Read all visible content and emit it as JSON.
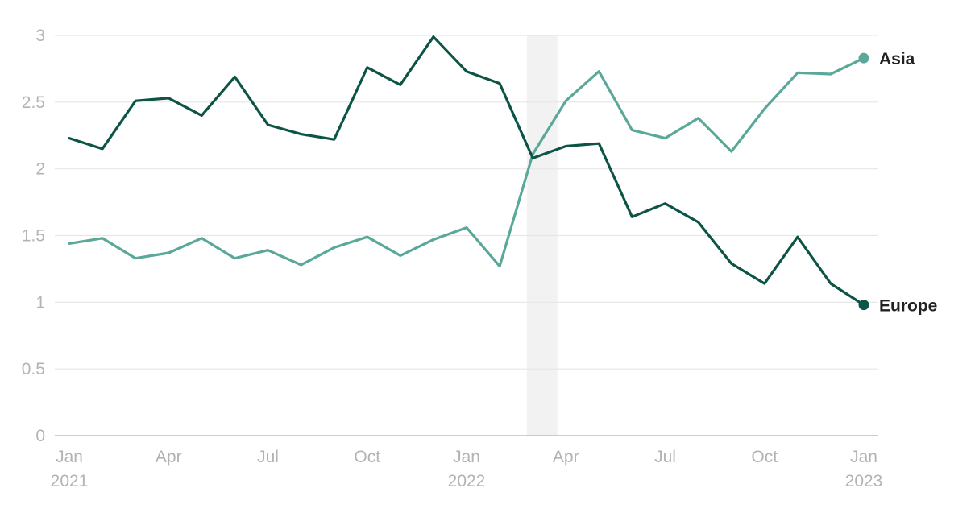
{
  "chart_data": {
    "type": "line",
    "title": "",
    "xlabel": "",
    "ylabel": "",
    "ylim": [
      0,
      3
    ],
    "y_ticks": [
      "0",
      "0.5",
      "1",
      "1.5",
      "2",
      "2.5",
      "3"
    ],
    "x_tick_labels": [
      {
        "month": 0,
        "line1": "Jan",
        "line2": "2021"
      },
      {
        "month": 3,
        "line1": "Apr",
        "line2": ""
      },
      {
        "month": 6,
        "line1": "Jul",
        "line2": ""
      },
      {
        "month": 9,
        "line1": "Oct",
        "line2": ""
      },
      {
        "month": 12,
        "line1": "Jan",
        "line2": "2022"
      },
      {
        "month": 15,
        "line1": "Apr",
        "line2": ""
      },
      {
        "month": 18,
        "line1": "Jul",
        "line2": ""
      },
      {
        "month": 21,
        "line1": "Oct",
        "line2": ""
      },
      {
        "month": 24,
        "line1": "Jan",
        "line2": "2023"
      }
    ],
    "x": [
      "2021-01",
      "2021-02",
      "2021-03",
      "2021-04",
      "2021-05",
      "2021-06",
      "2021-07",
      "2021-08",
      "2021-09",
      "2021-10",
      "2021-11",
      "2021-12",
      "2022-01",
      "2022-02",
      "2022-03",
      "2022-04",
      "2022-05",
      "2022-06",
      "2022-07",
      "2022-08",
      "2022-09",
      "2022-10",
      "2022-11",
      "2022-12",
      "2023-01"
    ],
    "highlight_band": {
      "from": "2022-02-24",
      "to": "2022-03-24",
      "color": "#f2f2f2"
    },
    "grid": true,
    "legend": "end-of-line labels",
    "series": [
      {
        "name": "Europe",
        "color": "#0d5446",
        "values": [
          2.23,
          2.15,
          2.51,
          2.53,
          2.4,
          2.69,
          2.33,
          2.26,
          2.22,
          2.76,
          2.63,
          2.99,
          2.73,
          2.64,
          2.08,
          2.17,
          2.19,
          1.64,
          1.74,
          1.6,
          1.29,
          1.14,
          1.49,
          1.14,
          0.98
        ]
      },
      {
        "name": "Asia",
        "color": "#5aa89a",
        "values": [
          1.44,
          1.48,
          1.33,
          1.37,
          1.48,
          1.33,
          1.39,
          1.28,
          1.41,
          1.49,
          1.35,
          1.47,
          1.56,
          1.27,
          2.11,
          2.51,
          2.73,
          2.29,
          2.23,
          2.38,
          2.13,
          2.45,
          2.72,
          2.71,
          2.83
        ]
      }
    ]
  }
}
